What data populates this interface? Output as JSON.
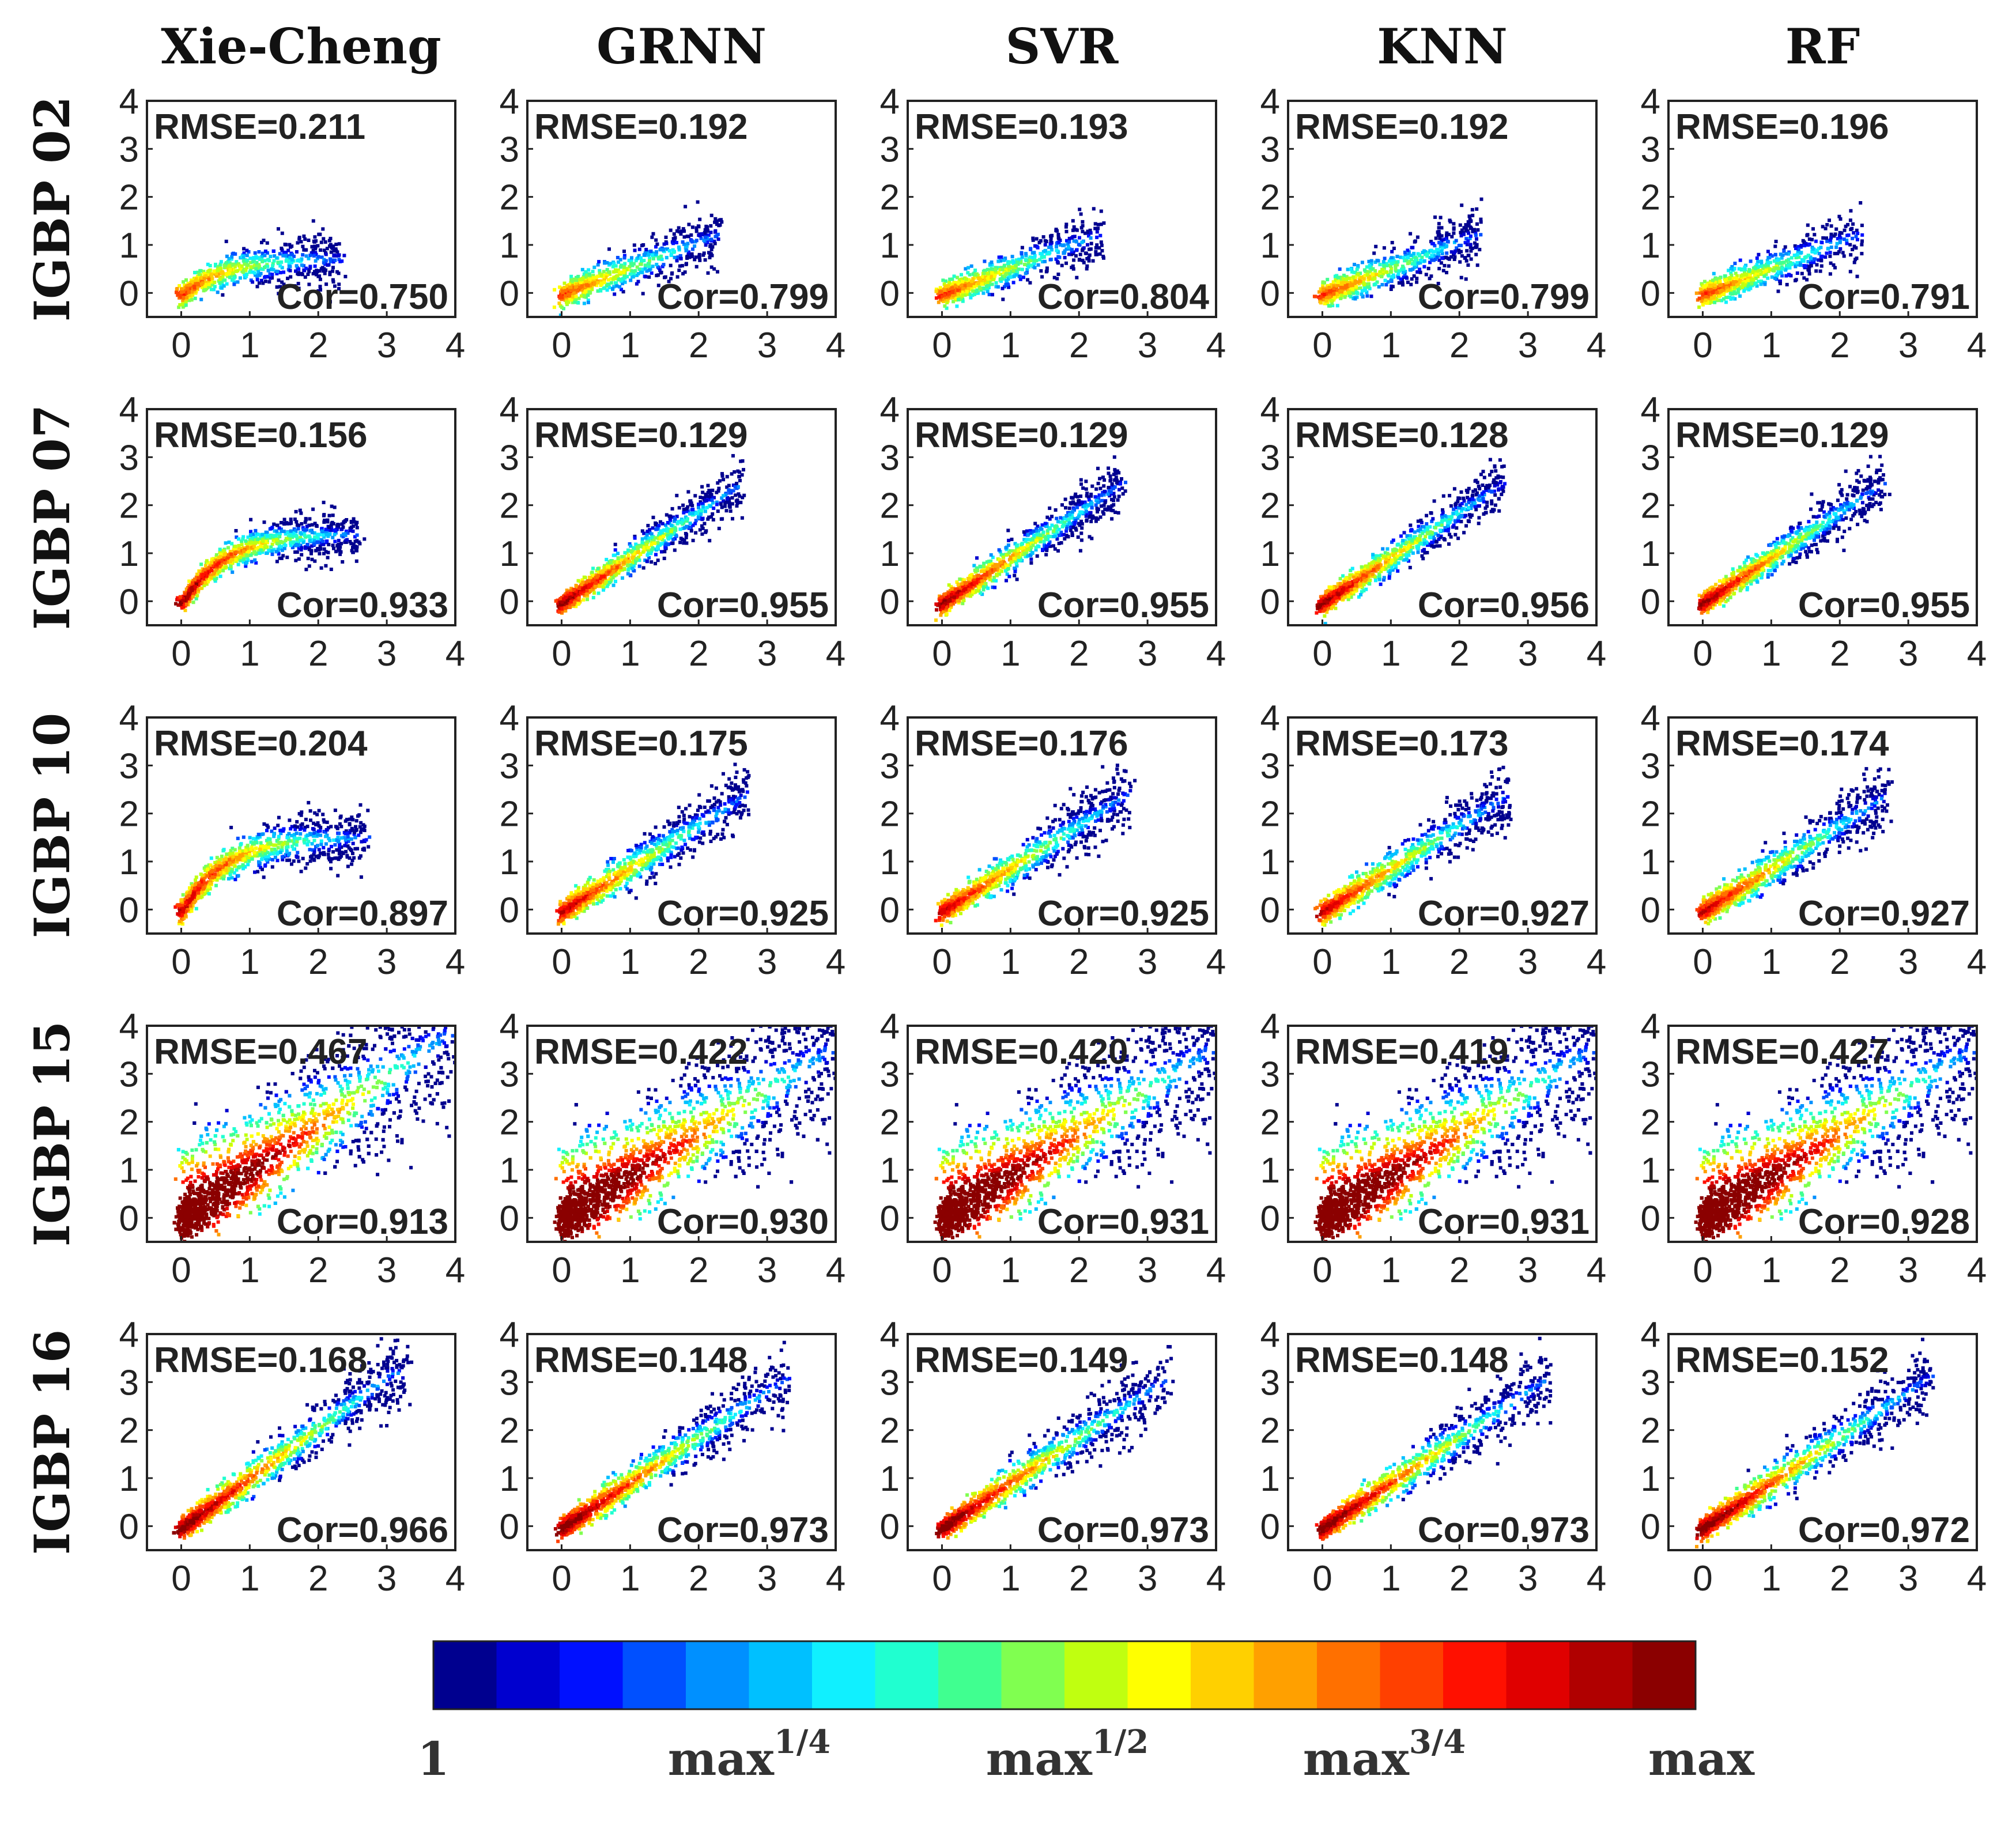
{
  "chart_data": {
    "type": "heatmap",
    "description": "Density scatter plots of estimated vs reference values by land-cover class and model",
    "columns": [
      "Xie-Cheng",
      "GRNN",
      "SVR",
      "KNN",
      "RF"
    ],
    "rows": [
      "IGBP 02",
      "IGBP 07",
      "IGBP 10",
      "IGBP 15",
      "IGBP 16"
    ],
    "xlim": [
      -0.5,
      4
    ],
    "ylim": [
      -0.5,
      4
    ],
    "xticks": [
      "0",
      "1",
      "2",
      "3",
      "4"
    ],
    "yticks": [
      "0",
      "1",
      "2",
      "3",
      "4"
    ],
    "rmse_prefix": "RMSE=",
    "cor_prefix": "Cor=",
    "rmse": [
      [
        "0.211",
        "0.192",
        "0.193",
        "0.192",
        "0.196"
      ],
      [
        "0.156",
        "0.129",
        "0.129",
        "0.128",
        "0.129"
      ],
      [
        "0.204",
        "0.175",
        "0.176",
        "0.173",
        "0.174"
      ],
      [
        "0.467",
        "0.422",
        "0.420",
        "0.419",
        "0.427"
      ],
      [
        "0.168",
        "0.148",
        "0.149",
        "0.148",
        "0.152"
      ]
    ],
    "cor": [
      [
        "0.750",
        "0.799",
        "0.804",
        "0.799",
        "0.791"
      ],
      [
        "0.933",
        "0.955",
        "0.955",
        "0.956",
        "0.955"
      ],
      [
        "0.897",
        "0.925",
        "0.925",
        "0.927",
        "0.927"
      ],
      [
        "0.913",
        "0.930",
        "0.931",
        "0.931",
        "0.928"
      ],
      [
        "0.966",
        "0.973",
        "0.973",
        "0.973",
        "0.972"
      ]
    ],
    "colorbar": {
      "labels": [
        {
          "base": "1",
          "exp": ""
        },
        {
          "base": "max",
          "exp": "1/4"
        },
        {
          "base": "max",
          "exp": "1/2"
        },
        {
          "base": "max",
          "exp": "3/4"
        },
        {
          "base": "max",
          "exp": ""
        }
      ],
      "colors": [
        "#00008f",
        "#0000cf",
        "#0010ff",
        "#0050ff",
        "#0090ff",
        "#00c0ff",
        "#10f0ff",
        "#20ffd0",
        "#40ff90",
        "#80ff50",
        "#c0ff10",
        "#ffff00",
        "#ffd000",
        "#ffa000",
        "#ff7000",
        "#ff4000",
        "#ff1000",
        "#e00000",
        "#b00000",
        "#8b0000"
      ]
    },
    "colormap": "jet"
  }
}
